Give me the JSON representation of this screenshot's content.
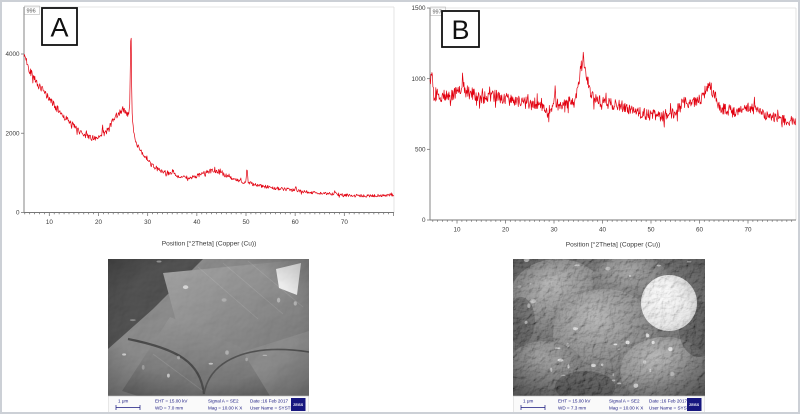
{
  "figure": {
    "description": "Two XRD diffractograms (panels A and B) with corresponding SEM micrographs below",
    "panels": [
      {
        "label": "A",
        "counter": "996"
      },
      {
        "label": "B",
        "counter": "997"
      }
    ]
  },
  "chart_data": [
    {
      "type": "line",
      "panel": "A",
      "counter_label": "996",
      "xlabel": "Position [°2Theta] (Copper (Cu))",
      "ylabel": "",
      "xlim": [
        4.85,
        80.1
      ],
      "ylim": [
        0,
        5186
      ],
      "xticks": [
        10,
        20,
        30,
        40,
        50,
        60,
        70
      ],
      "yticks": [
        0,
        2000,
        4000
      ],
      "minor_tick_step": 1,
      "grid": false,
      "legend": "none",
      "color": "#e2000f",
      "noise_factor": 1.7,
      "series": [
        {
          "name": "intensity",
          "x": [
            5,
            5.5,
            6,
            7,
            8,
            9,
            10,
            11,
            12,
            13,
            14,
            15,
            16,
            17,
            18,
            19,
            19.5,
            20,
            20.6,
            20.85,
            21.1,
            21.5,
            22,
            22.5,
            23,
            23.5,
            24,
            24.5,
            25,
            25.4,
            25.8,
            26.1,
            26.35,
            26.6,
            26.8,
            27,
            27.4,
            27.8,
            28.3,
            29,
            30,
            31,
            32,
            33,
            34,
            34.8,
            35.1,
            35.4,
            36,
            36.7,
            37.3,
            38,
            39,
            40,
            41,
            42,
            42.7,
            43.3,
            44,
            45,
            46,
            47,
            48,
            49,
            50,
            50.2,
            50.45,
            51,
            52,
            53,
            54,
            55,
            56,
            57,
            58,
            59,
            59.9,
            60.1,
            60.4,
            61,
            62,
            63,
            64,
            65,
            66,
            67,
            67.9,
            68.1,
            68.4,
            69,
            70,
            71,
            72,
            73,
            74,
            75,
            76,
            77,
            78,
            79,
            79.5
          ],
          "y": [
            3950,
            3750,
            3600,
            3380,
            3180,
            3020,
            2880,
            2700,
            2560,
            2420,
            2300,
            2180,
            2060,
            1980,
            1920,
            1870,
            1850,
            1870,
            1900,
            2150,
            1960,
            2020,
            2120,
            2230,
            2330,
            2420,
            2500,
            2560,
            2600,
            2570,
            2520,
            2480,
            2700,
            4850,
            2600,
            2150,
            1900,
            1750,
            1600,
            1450,
            1300,
            1180,
            1100,
            1040,
            1000,
            970,
            1080,
            960,
            930,
            900,
            890,
            880,
            890,
            920,
            970,
            1010,
            1040,
            1050,
            1030,
            990,
            930,
            860,
            810,
            780,
            770,
            1140,
            760,
            730,
            700,
            670,
            650,
            630,
            615,
            600,
            585,
            570,
            560,
            640,
            550,
            540,
            525,
            510,
            500,
            490,
            480,
            472,
            470,
            540,
            462,
            450,
            440,
            430,
            424,
            420,
            418,
            420,
            424,
            428,
            432,
            436,
            438
          ]
        }
      ]
    },
    {
      "type": "line",
      "panel": "B",
      "counter_label": "997",
      "xlabel": "Position [°2Theta] (Copper (Cu))",
      "ylabel": "",
      "xlim": [
        4.43,
        79.9
      ],
      "ylim": [
        0,
        1500
      ],
      "xticks": [
        10,
        20,
        30,
        40,
        50,
        60,
        70
      ],
      "yticks": [
        0,
        500,
        1000,
        1500
      ],
      "minor_tick_step": 1,
      "grid": false,
      "legend": "none",
      "color": "#e2000f",
      "noise_factor": 1.5,
      "series": [
        {
          "name": "intensity",
          "x": [
            5,
            5.3,
            5.6,
            6,
            7,
            8,
            9,
            10,
            10.8,
            11.2,
            11.6,
            12,
            13,
            14,
            15,
            16,
            17,
            18,
            19,
            20,
            21,
            22,
            23,
            24,
            25,
            26,
            27,
            28,
            28.6,
            29.2,
            29.9,
            30.15,
            30.4,
            31,
            32,
            33,
            34,
            34.6,
            35.2,
            35.7,
            36.1,
            36.5,
            37,
            37.5,
            38,
            39,
            40,
            41,
            42,
            43,
            44,
            45,
            46,
            47,
            48,
            49,
            50,
            51,
            52,
            53,
            54,
            55,
            56,
            56.6,
            57.2,
            58,
            59,
            60,
            60.8,
            61.5,
            62.2,
            62.8,
            63.5,
            64,
            65,
            66,
            67,
            68,
            69,
            70,
            70.6,
            71.2,
            72,
            73,
            74,
            75,
            76,
            77,
            78,
            79,
            79.5
          ],
          "y": [
            1000,
            780,
            900,
            860,
            880,
            870,
            890,
            900,
            930,
            1020,
            900,
            920,
            900,
            880,
            870,
            865,
            875,
            880,
            865,
            855,
            850,
            845,
            840,
            835,
            830,
            825,
            810,
            785,
            760,
            790,
            830,
            950,
            830,
            810,
            815,
            830,
            850,
            900,
            1000,
            1100,
            1150,
            1080,
            980,
            910,
            875,
            850,
            835,
            825,
            820,
            815,
            805,
            790,
            775,
            765,
            755,
            750,
            745,
            740,
            738,
            742,
            750,
            765,
            800,
            860,
            820,
            810,
            830,
            850,
            880,
            930,
            950,
            900,
            840,
            805,
            785,
            775,
            770,
            768,
            775,
            790,
            795,
            785,
            778,
            760,
            745,
            730,
            720,
            712,
            706,
            702,
            700
          ]
        }
      ]
    }
  ],
  "sem_images": [
    {
      "scale_label": "1 μm",
      "eht": "EHT = 15.00 kV",
      "wd": "WD = 7.0 mm",
      "signal": "Signal A = SE2",
      "mag": "Mag = 10.00 K X",
      "date": "Date :16 Feb 2017",
      "user": "User Name = SYSTEM",
      "logo": "ZEISS"
    },
    {
      "scale_label": "1 μm",
      "eht": "EHT = 15.00 kV",
      "wd": "WD = 7.3 mm",
      "signal": "Signal A = SE2",
      "mag": "Mag = 10.00 K X",
      "date": "Date :16 Feb 2017",
      "user": "User Name = SYSTEM",
      "logo": "ZEISS"
    }
  ],
  "colors": {
    "curve": "#e2000f",
    "axis": "#777777",
    "tick_text": "#3a3a3a",
    "figure_border": "#ccd0d6",
    "sem_navy": "#17177f"
  }
}
